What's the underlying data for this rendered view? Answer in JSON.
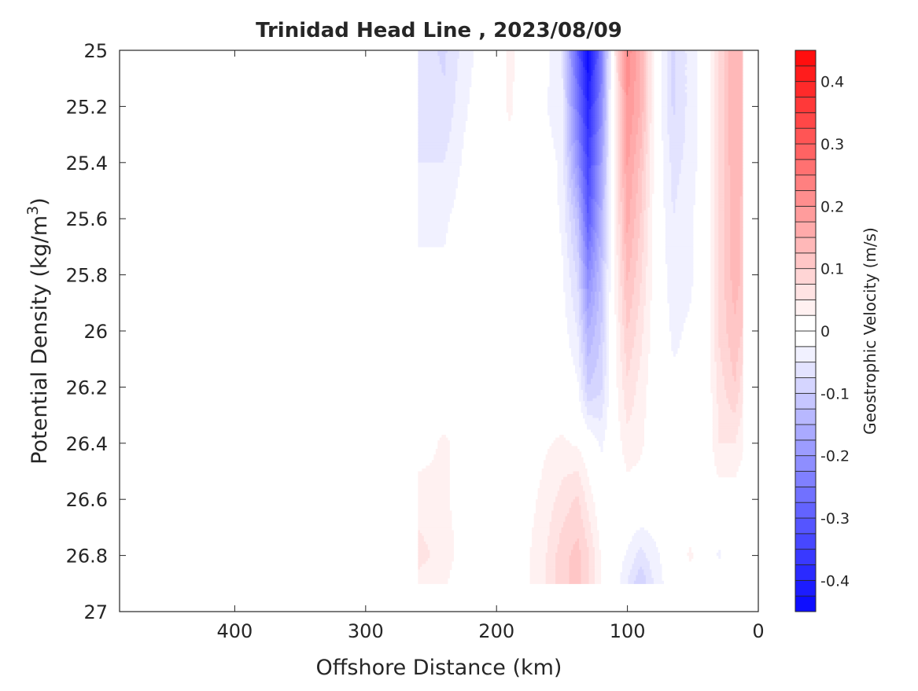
{
  "chart_data": {
    "type": "heatmap",
    "subtype": "filled-contour",
    "title": "Trinidad Head Line , 2023/08/09",
    "xlabel": "Offshore Distance (km)",
    "ylabel": {
      "text": "Potential Density (kg/m",
      "superscript": "3",
      "suffix": ")"
    },
    "colorbar_label": "Geostrophic Velocity (m/s)",
    "xlim": [
      488,
      0
    ],
    "x_reversed": true,
    "ylim": [
      25,
      27
    ],
    "y_reversed": true,
    "xticks": [
      "400",
      "300",
      "200",
      "100",
      "0"
    ],
    "yticks": [
      "25",
      "25.2",
      "25.4",
      "25.6",
      "25.8",
      "26",
      "26.2",
      "26.4",
      "26.6",
      "26.8",
      "27"
    ],
    "colorbar_ticks": [
      "0.4",
      "0.3",
      "0.2",
      "0.1",
      "0",
      "-0.1",
      "-0.2",
      "-0.3",
      "-0.4"
    ],
    "clim": [
      -0.45,
      0.45
    ],
    "contour_step": 0.025,
    "colormap": {
      "negative": "#0000ff",
      "zero": "#ffffff",
      "positive": "#ff0000"
    },
    "grid": false,
    "distance_km": [
      260,
      240,
      225,
      190,
      165,
      150,
      138,
      130,
      120,
      112,
      100,
      90,
      78,
      65,
      52,
      40,
      30,
      18,
      12
    ],
    "density": [
      25.0,
      25.2,
      25.4,
      25.6,
      25.8,
      26.0,
      26.2,
      26.4,
      26.6,
      26.8,
      26.9
    ],
    "velocity": [
      [
        -0.06,
        -0.06,
        -0.05,
        -0.03,
        -0.02,
        -0.01,
        0,
        0.01,
        0.04,
        0.06,
        0.04
      ],
      [
        -0.08,
        -0.07,
        -0.05,
        -0.03,
        -0.02,
        0,
        0,
        0.03,
        0.03,
        0.04,
        0.03
      ],
      [
        -0.04,
        -0.03,
        -0.02,
        -0.01,
        0,
        0,
        0,
        0.01,
        0.01,
        0.01,
        0
      ],
      [
        0.03,
        0.03,
        0.01,
        0,
        0,
        0,
        0,
        0,
        0,
        0,
        0
      ],
      [
        -0.01,
        -0.02,
        -0.01,
        0,
        0,
        0,
        0,
        0.02,
        0.03,
        0.04,
        0.04
      ],
      [
        -0.05,
        -0.04,
        -0.03,
        -0.03,
        -0.02,
        -0.01,
        0,
        0.03,
        0.06,
        0.09,
        0.09
      ],
      [
        -0.3,
        -0.25,
        -0.2,
        -0.12,
        -0.08,
        -0.05,
        -0.02,
        0.02,
        0.08,
        0.11,
        0.11
      ],
      [
        -0.45,
        -0.4,
        -0.35,
        -0.3,
        -0.22,
        -0.15,
        -0.1,
        0,
        0.04,
        0.08,
        0.08
      ],
      [
        -0.25,
        -0.22,
        -0.18,
        -0.15,
        -0.12,
        -0.1,
        -0.08,
        -0.03,
        0,
        0.02,
        0.02
      ],
      [
        0,
        0,
        0,
        0,
        0,
        0,
        0,
        0,
        0,
        0,
        0
      ],
      [
        0.22,
        0.2,
        0.18,
        0.16,
        0.13,
        0.1,
        0.07,
        0.04,
        0.01,
        -0.03,
        -0.05
      ],
      [
        0.15,
        0.15,
        0.12,
        0.1,
        0.08,
        0.06,
        0.04,
        0.03,
        0.01,
        -0.06,
        -0.1
      ],
      [
        0,
        0,
        0,
        0,
        0,
        0,
        0,
        0,
        0,
        -0.03,
        -0.04
      ],
      [
        -0.08,
        -0.08,
        -0.06,
        -0.05,
        -0.04,
        -0.03,
        -0.02,
        -0.01,
        0,
        0,
        0
      ],
      [
        -0.04,
        -0.04,
        -0.04,
        -0.03,
        -0.03,
        -0.02,
        -0.02,
        -0.01,
        0,
        0.03,
        0
      ],
      [
        0,
        0,
        0,
        0,
        0,
        0,
        0,
        0,
        0,
        0,
        0
      ],
      [
        0.08,
        0.08,
        0.08,
        0.08,
        0.08,
        0.08,
        0.06,
        0.05,
        0.01,
        -0.03,
        0
      ],
      [
        0.15,
        0.15,
        0.15,
        0.14,
        0.14,
        0.12,
        0.1,
        0.05,
        0.01,
        0,
        0
      ],
      [
        0.12,
        0.12,
        0.12,
        0.12,
        0.12,
        0.1,
        0.06,
        0.03,
        0,
        0,
        0
      ]
    ]
  }
}
